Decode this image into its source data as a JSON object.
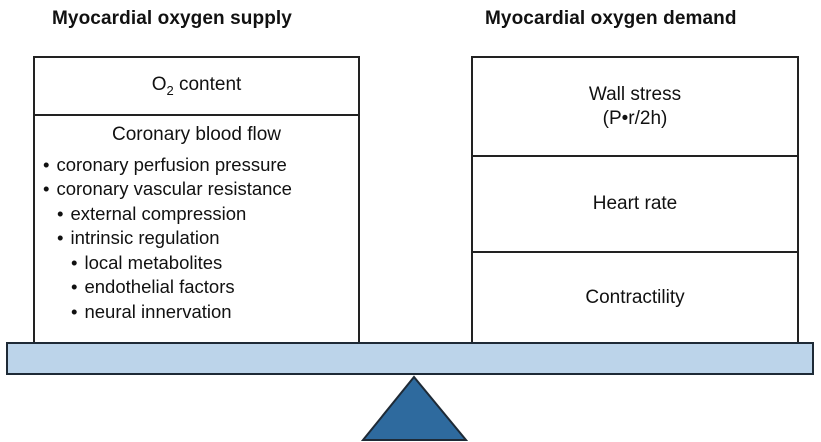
{
  "supply": {
    "heading": "Myocardial oxygen supply",
    "o2_content": {
      "prefix": "O",
      "sub": "2",
      "suffix": " content"
    },
    "coronary_flow": {
      "title": "Coronary blood flow",
      "items": [
        {
          "level": 1,
          "text": "coronary perfusion pressure"
        },
        {
          "level": 1,
          "text": "coronary vascular resistance"
        },
        {
          "level": 2,
          "text": "external compression"
        },
        {
          "level": 2,
          "text": "intrinsic regulation"
        },
        {
          "level": 3,
          "text": "local metabolites"
        },
        {
          "level": 3,
          "text": "endothelial factors"
        },
        {
          "level": 3,
          "text": "neural innervation"
        }
      ]
    }
  },
  "demand": {
    "heading": "Myocardial oxygen demand",
    "wall_stress": {
      "title": "Wall stress",
      "formula": "(P•r/2h)"
    },
    "heart_rate": "Heart rate",
    "contractility": "Contractility"
  },
  "colors": {
    "beam": "#bcd4ea",
    "fulcrum": "#2e6a9e",
    "outline": "#1e2a36"
  }
}
